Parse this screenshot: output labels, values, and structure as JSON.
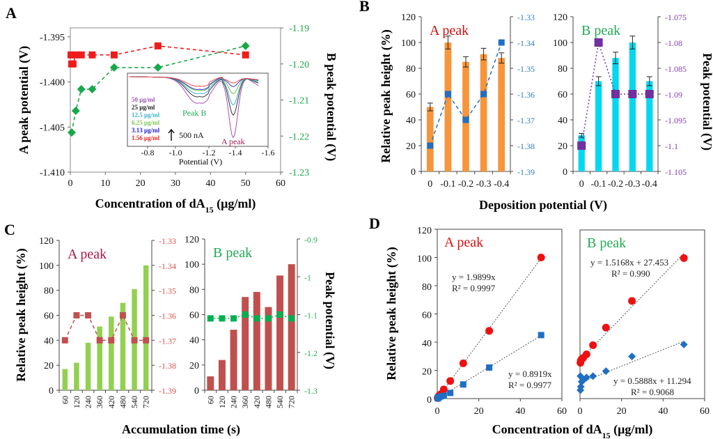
{
  "chart_data": [
    {
      "id": "A",
      "type": "line",
      "panel_label": "A",
      "xlabel": "Concentration of dA15 (μg/ml)",
      "xlabel_main": "Concentration of dA",
      "xlabel_sub": "15",
      "xlabel_tail": " (μg/ml)",
      "ylabel_left": "A peak potential (V)",
      "ylabel_right": "B peak potential (V)",
      "xlim": [
        0,
        60
      ],
      "xticks": [
        0,
        10,
        20,
        30,
        40,
        50,
        60
      ],
      "ylim_left": [
        -1.41,
        -1.394
      ],
      "yticks_left": [
        "-1.395",
        "-1.400",
        "-1.405",
        "-1.410"
      ],
      "yticks_left_values": [
        -1.395,
        -1.4,
        -1.405,
        -1.41
      ],
      "ylim_right": [
        -1.23,
        -1.19
      ],
      "yticks_right": [
        "-1.19",
        "-1.20",
        "-1.21",
        "-1.22",
        "-1.23"
      ],
      "yticks_right_values": [
        -1.19,
        -1.2,
        -1.21,
        -1.22,
        -1.23
      ],
      "series": [
        {
          "name": "A peak potential",
          "axis": "left",
          "marker": "square",
          "color": "#ee1c1c",
          "x": [
            0.2,
            0.39,
            0.78,
            1.56,
            3.13,
            6.25,
            12.5,
            25,
            50
          ],
          "y": [
            -1.397,
            -1.398,
            -1.398,
            -1.397,
            -1.397,
            -1.397,
            -1.397,
            -1.396,
            -1.397
          ]
        },
        {
          "name": "B peak potential",
          "axis": "right",
          "marker": "diamond",
          "color": "#18a84a",
          "x": [
            0.39,
            1.56,
            3.13,
            6.25,
            12.5,
            25,
            50
          ],
          "y": [
            -1.219,
            -1.213,
            -1.207,
            -1.207,
            -1.201,
            -1.201,
            -1.195
          ]
        }
      ],
      "inset": {
        "type": "line",
        "xlabel": "Potential (V)",
        "xticks": [
          "-0.8",
          "-1.0",
          "-1.2",
          "-1.4",
          "-1.6"
        ],
        "xlim": [
          -0.68,
          -1.6
        ],
        "scale_label": "500 nA",
        "peak_b_label": "Peak B",
        "peak_a_label": "A peak",
        "legend": [
          {
            "label": "50 μg/ml",
            "color": "#9b59b6"
          },
          {
            "label": "25 μg/ml",
            "color": "#222222"
          },
          {
            "label": "12.5  μg/ml",
            "color": "#3fb4c9"
          },
          {
            "label": "6.25  μg/ml",
            "color": "#7ec850"
          },
          {
            "label": "3.13 μg/ml",
            "color": "#1f1fd6"
          },
          {
            "label": "1.56 μg/ml",
            "color": "#ee2222"
          }
        ],
        "curves": [
          {
            "label": "50 μg/ml",
            "color": "#a050c0",
            "b_depth": 0.48,
            "a_depth": 1.0
          },
          {
            "label": "25 μg/ml",
            "color": "#333333",
            "b_depth": 0.36,
            "a_depth": 0.62
          },
          {
            "label": "12.5  μg/ml",
            "color": "#3fb4c9",
            "b_depth": 0.3,
            "a_depth": 0.45
          },
          {
            "label": "6.25  μg/ml",
            "color": "#6fbf4a",
            "b_depth": 0.24,
            "a_depth": 0.26
          },
          {
            "label": "3.13 μg/ml",
            "color": "#3535c8",
            "b_depth": 0.22,
            "a_depth": 0.14
          },
          {
            "label": "1.56 μg/ml",
            "color": "#f04040",
            "b_depth": 0.16,
            "a_depth": 0.08
          }
        ]
      }
    },
    {
      "id": "B-A",
      "type": "bar",
      "panel_label": "B",
      "title": "A peak",
      "title_color": "#cc1111",
      "categories": [
        "0",
        "-0.1",
        "-0.2",
        "-0.3",
        "-0.4"
      ],
      "ylim_left": [
        0,
        120
      ],
      "yticks_left": [
        0,
        20,
        40,
        60,
        80,
        100,
        120
      ],
      "ylabel_left": "Relative peak height (%)",
      "bar_color": "#f7953a",
      "values": [
        50,
        100,
        85,
        91,
        88
      ],
      "errors": [
        3,
        5,
        4,
        4.5,
        4
      ],
      "ylim_right": [
        -1.39,
        -1.33
      ],
      "yticks_right": [
        "-1.33",
        "-1.34",
        "-1.35",
        "-1.36",
        "-1.37",
        "-1.38",
        "-1.39"
      ],
      "yticks_right_values": [
        -1.33,
        -1.34,
        -1.35,
        -1.36,
        -1.37,
        -1.38,
        -1.39
      ],
      "right_axis_color": "#2c7fc4",
      "line": {
        "name": "A peak potential",
        "color": "#1f6fc2",
        "marker": "square",
        "values": [
          -1.38,
          -1.36,
          -1.37,
          -1.36,
          -1.34
        ]
      }
    },
    {
      "id": "B-B",
      "type": "bar",
      "title": "B peak",
      "title_color": "#22aa55",
      "categories": [
        "0",
        "-0.1",
        "-0.2",
        "-0.3",
        "-0.4"
      ],
      "ylim_left": [
        0,
        120
      ],
      "yticks_left": [
        0,
        20,
        40,
        60,
        80,
        100,
        120
      ],
      "bar_color": "#00d8f0",
      "values": [
        28,
        70,
        88,
        100,
        70
      ],
      "errors": [
        1.5,
        3.5,
        4.5,
        5,
        3.5
      ],
      "ylim_right": [
        -1.105,
        -1.075
      ],
      "yticks_right": [
        "-1.075",
        "-1.08",
        "-1.085",
        "-1.09",
        "-1.095",
        "-1.1",
        "-1.105"
      ],
      "yticks_right_values": [
        -1.075,
        -1.08,
        -1.085,
        -1.09,
        -1.095,
        -1.1,
        -1.105
      ],
      "right_axis_color": "#8040b0",
      "ylabel_right": "Peak potential (V)",
      "xlabel": "Deposition potential (V)",
      "line": {
        "name": "B peak potential",
        "color": "#7030a0",
        "marker": "square",
        "values": [
          -1.1,
          -1.08,
          -1.09,
          -1.09,
          -1.09
        ]
      }
    },
    {
      "id": "C-A",
      "type": "bar",
      "panel_label": "C",
      "title": "A peak",
      "title_color": "#a8184a",
      "categories": [
        "60",
        "120",
        "240",
        "360",
        "420",
        "480",
        "540",
        "720"
      ],
      "ylim_left": [
        0,
        120
      ],
      "yticks_left": [
        0,
        20,
        40,
        60,
        80,
        100,
        120
      ],
      "ylabel_left": "Relative peak height (%)",
      "bar_color": "#92d050",
      "values": [
        17,
        22,
        38,
        51,
        59,
        70,
        81,
        100
      ],
      "ylim_right": [
        -1.39,
        -1.33
      ],
      "yticks_right": [
        "-1.33",
        "-1.34",
        "-1.35",
        "-1.36",
        "-1.37",
        "-1.38",
        "-1.39"
      ],
      "yticks_right_values": [
        -1.33,
        -1.34,
        -1.35,
        -1.36,
        -1.37,
        -1.38,
        -1.39
      ],
      "right_axis_color": "#d9534f",
      "line": {
        "name": "A peak potential",
        "color": "#c0504d",
        "marker": "square",
        "values": [
          -1.37,
          -1.36,
          -1.36,
          -1.37,
          -1.37,
          -1.36,
          -1.37,
          -1.37
        ]
      }
    },
    {
      "id": "C-B",
      "type": "bar",
      "title": "B peak",
      "title_color": "#22aa55",
      "categories": [
        "60",
        "120",
        "240",
        "360",
        "420",
        "480",
        "540",
        "720"
      ],
      "ylim_left": [
        0,
        120
      ],
      "yticks_left": [
        0,
        20,
        40,
        60,
        80,
        100,
        120
      ],
      "bar_color": "#c0504d",
      "values": [
        11,
        24,
        48,
        74,
        78,
        66,
        91,
        100
      ],
      "ylim_right": [
        -1.3,
        -0.9
      ],
      "yticks_right": [
        "-0.9",
        "-1",
        "-1.1",
        "-1.2",
        "-1.3"
      ],
      "yticks_right_values": [
        -0.9,
        -1.0,
        -1.1,
        -1.2,
        -1.3
      ],
      "right_axis_color": "#22b050",
      "ylabel_right": "Peak potential (V)",
      "xlabel": "Accumulation time (s)",
      "line": {
        "name": "B peak potential",
        "color": "#00b050",
        "marker": "square",
        "values": [
          -1.11,
          -1.11,
          -1.11,
          -1.1,
          -1.11,
          -1.11,
          -1.1,
          -1.11
        ]
      }
    },
    {
      "id": "D-A",
      "type": "scatter",
      "panel_label": "D",
      "title": "A peak",
      "title_color": "#dd1111",
      "xlim": [
        0,
        60
      ],
      "xticks": [
        0,
        20,
        40,
        60
      ],
      "ylim": [
        0,
        120
      ],
      "yticks": [
        0,
        20,
        40,
        60,
        80,
        100,
        120
      ],
      "ylabel": "Relative peak height (%)",
      "series": [
        {
          "name": "A peak (red)",
          "color": "#ee1111",
          "marker": "circle",
          "x": [
            0.2,
            0.39,
            0.78,
            1.56,
            3.13,
            6.25,
            12.5,
            25,
            50
          ],
          "y": [
            0.4,
            1,
            2,
            3,
            6.5,
            12.5,
            25,
            48,
            100
          ],
          "fit": {
            "slope": 1.9899,
            "intercept": 0,
            "equation": "y = 1.9899x",
            "r2": "R² = 0.9997"
          }
        },
        {
          "name": "A peak (blue)",
          "color": "#1f6fc2",
          "marker": "square",
          "x": [
            0.2,
            0.39,
            0.78,
            1.56,
            3.13,
            6.25,
            12.5,
            25,
            50
          ],
          "y": [
            0.2,
            0.5,
            1,
            1.5,
            2,
            4,
            10,
            22,
            45
          ],
          "fit": {
            "slope": 0.8919,
            "intercept": 0,
            "equation": "y = 0.8919x",
            "r2": "R² = 0.9977"
          }
        }
      ]
    },
    {
      "id": "D-B",
      "type": "scatter",
      "title": "B peak",
      "title_color": "#22aa55",
      "xlim": [
        0,
        60
      ],
      "xticks": [
        0,
        20,
        40,
        60
      ],
      "ylim": [
        0,
        120
      ],
      "xlabel_main": "Concentration of dA",
      "xlabel_sub": "15",
      "xlabel_tail": " (μg/ml)",
      "series": [
        {
          "name": "B peak (red)",
          "color": "#ee1111",
          "marker": "circle",
          "x": [
            0.2,
            0.39,
            0.78,
            1.56,
            3.13,
            6.25,
            12.5,
            25,
            50
          ],
          "y": [
            25.5,
            27,
            28,
            29,
            31.5,
            38,
            50.5,
            69.5,
            100
          ],
          "fit": {
            "slope": 1.5168,
            "intercept": 27.453,
            "equation": "y = 1.5168x + 27.453",
            "r2": "R² = 0.990"
          }
        },
        {
          "name": "B peak (blue)",
          "color": "#1f6fc2",
          "marker": "diamond",
          "x": [
            0.2,
            0.2,
            0.39,
            0.78,
            1.56,
            3.13,
            6.25,
            12.5,
            25,
            50
          ],
          "y": [
            6,
            16,
            8.5,
            12,
            13,
            15,
            16,
            19.5,
            30,
            38.5
          ],
          "fit": {
            "slope": 0.5888,
            "intercept": 11.294,
            "equation": "y = 0.5888x + 11.294",
            "r2": "R² = 0.9068"
          }
        }
      ]
    }
  ]
}
